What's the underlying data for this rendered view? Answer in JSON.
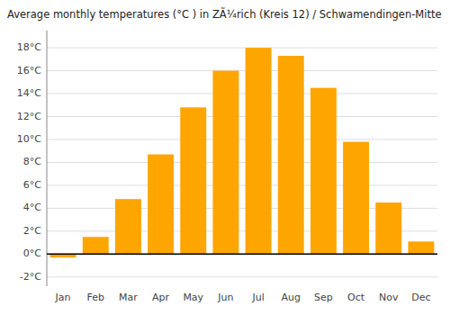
{
  "chart_data": {
    "type": "bar",
    "title": "Average monthly temperatures (°C ) in ZÃ¼rich (Kreis 12) / Schwamendingen-Mitte",
    "categories": [
      "Jan",
      "Feb",
      "Mar",
      "Apr",
      "May",
      "Jun",
      "Jul",
      "Aug",
      "Sep",
      "Oct",
      "Nov",
      "Dec"
    ],
    "values": [
      -0.3,
      1.5,
      4.8,
      8.7,
      12.8,
      16.0,
      18.0,
      17.3,
      14.5,
      9.8,
      4.5,
      1.1
    ],
    "color": "#FFA500",
    "ylim": [
      -2.8,
      19.5
    ],
    "yticks": [
      {
        "value": -2,
        "label": "-2°C"
      },
      {
        "value": 0,
        "label": "0°C"
      },
      {
        "value": 2,
        "label": "2°C"
      },
      {
        "value": 4,
        "label": "4°C"
      },
      {
        "value": 6,
        "label": "6°C"
      },
      {
        "value": 8,
        "label": "8°C"
      },
      {
        "value": 10,
        "label": "10°C"
      },
      {
        "value": 12,
        "label": "12°C"
      },
      {
        "value": 14,
        "label": "14°C"
      },
      {
        "value": 16,
        "label": "16°C"
      },
      {
        "value": 18,
        "label": "18°C"
      }
    ],
    "grid": true
  }
}
